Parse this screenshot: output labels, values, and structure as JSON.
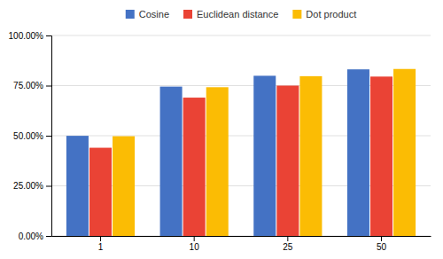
{
  "chart_data": {
    "type": "bar",
    "categories": [
      "1",
      "10",
      "25",
      "50"
    ],
    "series": [
      {
        "name": "Cosine",
        "color": "#4472C4",
        "values": [
          0.4995,
          0.745,
          0.799,
          0.831
        ]
      },
      {
        "name": "Euclidean distance",
        "color": "#EA4335",
        "values": [
          0.44,
          0.69,
          0.75,
          0.795
        ]
      },
      {
        "name": "Dot product",
        "color": "#FBBC04",
        "values": [
          0.4975,
          0.742,
          0.797,
          0.833
        ]
      }
    ],
    "ylim": [
      0.0,
      1.0
    ],
    "yticks": [
      {
        "value": 0.0,
        "label": "0.00%"
      },
      {
        "value": 0.25,
        "label": "25.00%"
      },
      {
        "value": 0.5,
        "label": "50.00%"
      },
      {
        "value": 0.75,
        "label": "75.00%"
      },
      {
        "value": 1.0,
        "label": "100.00%"
      }
    ],
    "grid": true,
    "legend": "top"
  }
}
